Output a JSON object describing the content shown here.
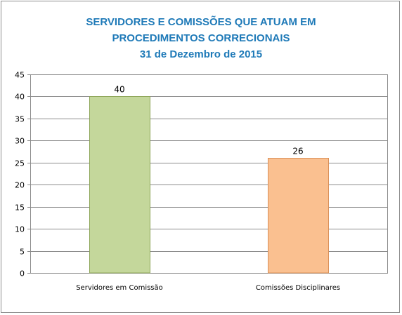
{
  "chart_data": {
    "type": "bar",
    "title_lines": [
      "SERVIDORES E COMISSÕES QUE ATUAM EM",
      "PROCEDIMENTOS CORRECIONAIS",
      "31 de Dezembro de 2015"
    ],
    "categories": [
      "Servidores em Comissão",
      "Comissões Disciplinares"
    ],
    "values": [
      40,
      26
    ],
    "colors": [
      "#c4d79b",
      "#fac090"
    ],
    "bar_borders": [
      "#8ea65a",
      "#d99058"
    ],
    "ylim": [
      0,
      45
    ],
    "yticks": [
      0,
      5,
      10,
      15,
      20,
      25,
      30,
      35,
      40,
      45
    ],
    "grid": true,
    "legend": "none",
    "xlabel": "",
    "ylabel": ""
  }
}
